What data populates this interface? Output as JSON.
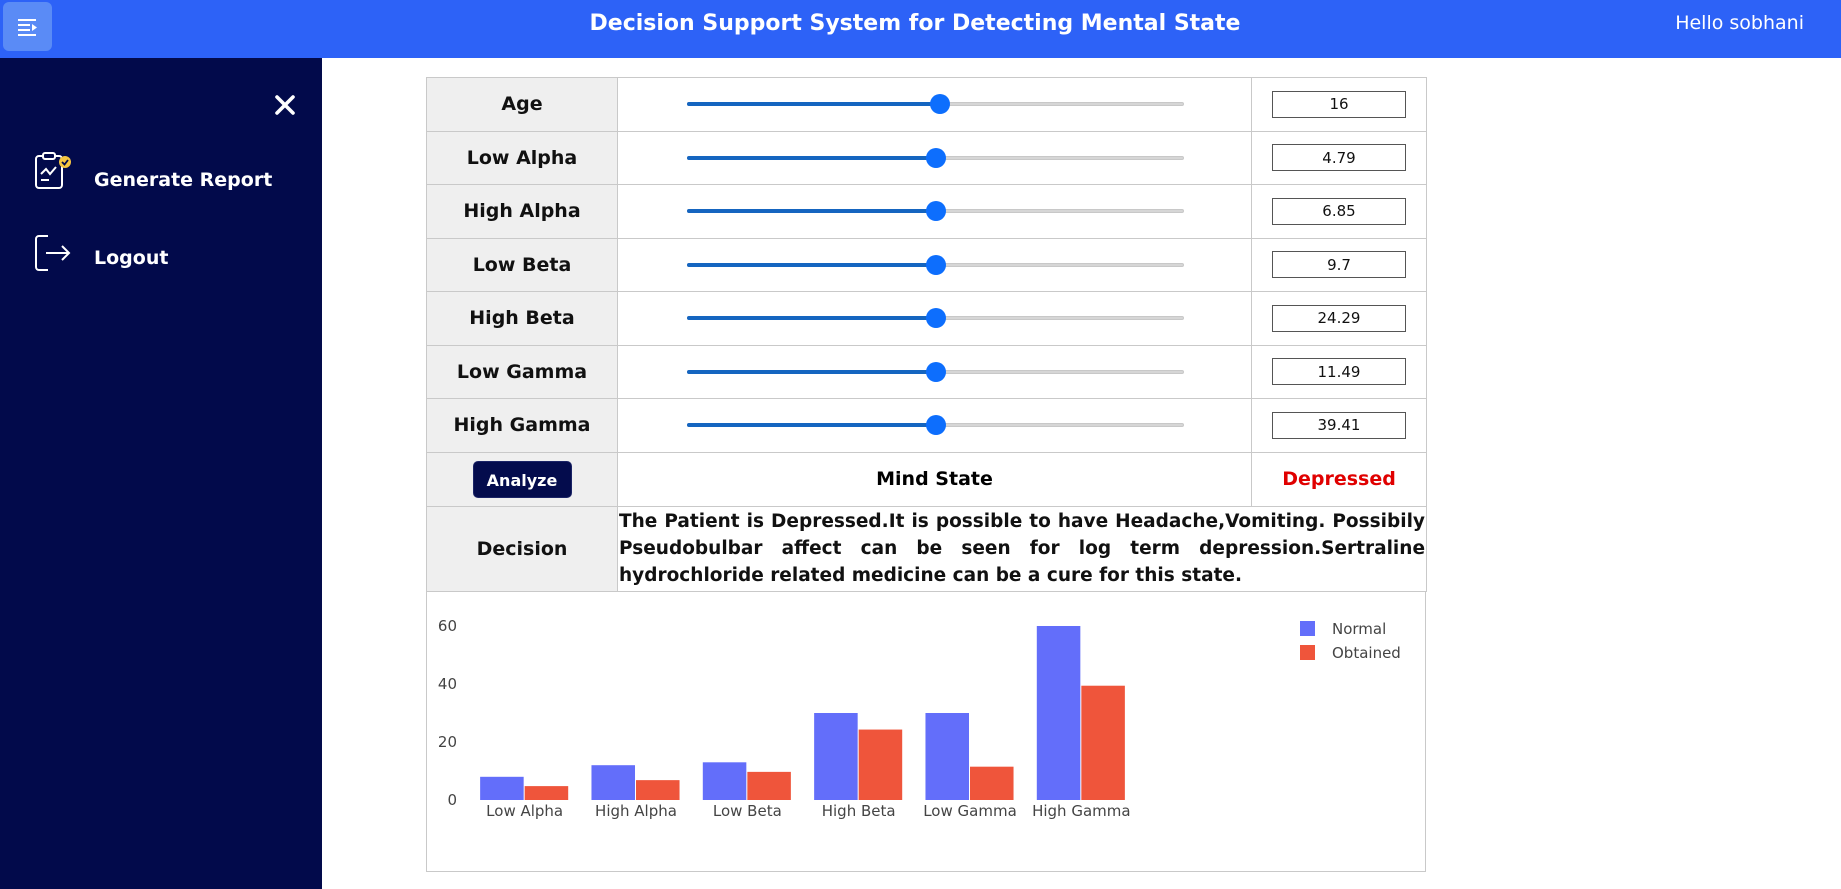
{
  "header": {
    "title": "Decision Support System for Detecting Mental State",
    "greeting": "Hello sobhani"
  },
  "sidebar": {
    "items": [
      {
        "label": "Generate Report",
        "icon": "report-icon"
      },
      {
        "label": "Logout",
        "icon": "logout-icon"
      }
    ]
  },
  "params": [
    {
      "label": "Age",
      "value": "16",
      "slider_fraction": 0.51
    },
    {
      "label": "Low Alpha",
      "value": "4.79",
      "slider_fraction": 0.5
    },
    {
      "label": "High Alpha",
      "value": "6.85",
      "slider_fraction": 0.5
    },
    {
      "label": "Low Beta",
      "value": "9.7",
      "slider_fraction": 0.5
    },
    {
      "label": "High Beta",
      "value": "24.29",
      "slider_fraction": 0.5
    },
    {
      "label": "Low Gamma",
      "value": "11.49",
      "slider_fraction": 0.5
    },
    {
      "label": "High Gamma",
      "value": "39.41",
      "slider_fraction": 0.5
    }
  ],
  "analysis": {
    "button_label": "Analyze",
    "mind_state_label": "Mind State",
    "mind_state_value": "Depressed",
    "decision_label": "Decision",
    "decision_text": "The Patient is Depressed.It is possible to have Headache,Vomiting. Possibily Pseudobulbar affect can be seen for log term depression.Sertraline hydrochloride related medicine can be a cure for this state."
  },
  "colors": {
    "header": "#2d62f7",
    "sidebar": "#020a4b",
    "depressed": "#e00000",
    "normal_series": "#636efa",
    "obtained_series": "#ef553b"
  },
  "chart_data": {
    "type": "bar",
    "categories": [
      "Low Alpha",
      "High Alpha",
      "Low Beta",
      "High Beta",
      "Low Gamma",
      "High Gamma"
    ],
    "series": [
      {
        "name": "Normal",
        "values": [
          8,
          12,
          13,
          30,
          30,
          60
        ]
      },
      {
        "name": "Obtained",
        "values": [
          4.79,
          6.85,
          9.7,
          24.29,
          11.49,
          39.41
        ]
      }
    ],
    "yticks": [
      0,
      20,
      40,
      60
    ],
    "ylim": [
      0,
      60
    ],
    "legend": "top-right",
    "grid": false
  }
}
